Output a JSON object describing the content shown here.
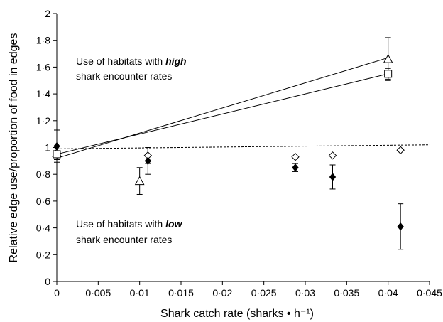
{
  "chart_data": {
    "type": "scatter",
    "xlabel": "Shark catch rate (sharks • h⁻¹)",
    "ylabel": "Relative edge use/proportion of food in edges",
    "xlim": [
      0,
      0.045
    ],
    "ylim": [
      0,
      2
    ],
    "x_ticks": [
      0,
      0.005,
      0.01,
      0.015,
      0.02,
      0.025,
      0.03,
      0.035,
      0.04,
      0.045
    ],
    "x_tick_labels": [
      "0",
      "0·005",
      "0·01",
      "0·015",
      "0·02",
      "0·025",
      "0·03",
      "0·035",
      "0·04",
      "0·045"
    ],
    "y_ticks": [
      0,
      0.2,
      0.4,
      0.6,
      0.8,
      1,
      1.2,
      1.4,
      1.6,
      1.8,
      2
    ],
    "y_tick_labels": [
      "0",
      "0·2",
      "0·4",
      "0·6",
      "0·8",
      "1",
      "1·2",
      "1·4",
      "1·6",
      "1·8",
      "2"
    ],
    "grid": false,
    "legend": "none",
    "series": [
      {
        "marker": "triangle-open",
        "color": "#000000",
        "x": [
          0.0,
          0.01,
          0.04
        ],
        "y": [
          0.96,
          0.75,
          1.66
        ],
        "err": [
          0.0,
          0.1,
          0.16
        ],
        "fit": {
          "x": [
            0.0,
            0.04
          ],
          "y": [
            0.92,
            1.67
          ],
          "style": "solid"
        }
      },
      {
        "marker": "square-open",
        "color": "#000000",
        "x": [
          0.0,
          0.04
        ],
        "y": [
          0.95,
          1.55
        ],
        "err": [
          0.04,
          0.04
        ],
        "fit": {
          "x": [
            0.0,
            0.04
          ],
          "y": [
            0.95,
            1.55
          ],
          "style": "solid"
        }
      },
      {
        "marker": "diamond-open",
        "color": "#000000",
        "x": [
          0.011,
          0.0288,
          0.0333,
          0.0415
        ],
        "y": [
          0.94,
          0.93,
          0.94,
          0.98
        ],
        "err": [
          0.06,
          0.0,
          0.0,
          0.0
        ],
        "fit": {
          "x": [
            0.0,
            0.045
          ],
          "y": [
            0.99,
            1.02
          ],
          "style": "dashed"
        }
      },
      {
        "marker": "diamond-filled",
        "color": "#000000",
        "x": [
          0.0,
          0.011,
          0.0288,
          0.0333,
          0.0415
        ],
        "y": [
          1.01,
          0.9,
          0.85,
          0.78,
          0.41
        ],
        "err": [
          0.12,
          0.1,
          0.03,
          0.09,
          0.17
        ]
      }
    ],
    "annotations": [
      {
        "pre": "Use of habitats with ",
        "em": "high",
        "line2": "shark encounter rates"
      },
      {
        "pre": "Use of habitats with ",
        "em": "low",
        "line2": "shark encounter rates"
      }
    ]
  }
}
